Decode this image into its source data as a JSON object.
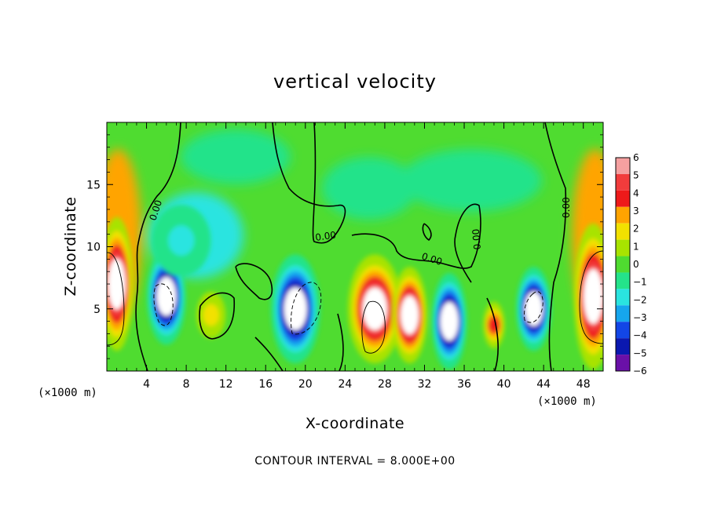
{
  "chart_data": {
    "type": "heatmap",
    "title": "vertical velocity",
    "xlabel": "X-coordinate",
    "ylabel": "Z-coordinate",
    "x_unit": "(×1000 m)",
    "x_unit_right": "(×1000 m)",
    "xlim": [
      0,
      50
    ],
    "ylim": [
      0,
      20
    ],
    "x_ticks": [
      4,
      8,
      12,
      16,
      20,
      24,
      28,
      32,
      36,
      40,
      44,
      48
    ],
    "y_ticks": [
      5,
      10,
      15
    ],
    "colorbar": {
      "levels": [
        6,
        5,
        4,
        3,
        2,
        1,
        0,
        -1,
        -2,
        -3,
        -4,
        -5,
        -6
      ],
      "labels": [
        "6",
        "5",
        "4",
        "3",
        "2",
        "1",
        "0",
        "−1",
        "−2",
        "−3",
        "−4",
        "−5",
        "−6"
      ],
      "colors": [
        "#f5a0a0",
        "#f23c3c",
        "#ee1a1a",
        "#ffa400",
        "#f2e100",
        "#a8e300",
        "#4fdc30",
        "#24e38a",
        "#2ae4e0",
        "#16a6ee",
        "#1246e6",
        "#0a18b0",
        "#6a10a8"
      ]
    },
    "cells": [
      {
        "x": 1.0,
        "z": 7.0,
        "w": 2.4,
        "h": 10.0,
        "v": 9
      },
      {
        "x": 6.0,
        "z": 6.0,
        "w": 3.0,
        "h": 7.0,
        "v": -9
      },
      {
        "x": 10.5,
        "z": 4.5,
        "w": 2.0,
        "h": 3.0,
        "v": 2
      },
      {
        "x": 19.0,
        "z": 5.0,
        "w": 4.0,
        "h": 8.0,
        "v": -9
      },
      {
        "x": 27.0,
        "z": 5.0,
        "w": 4.5,
        "h": 8.0,
        "v": 9
      },
      {
        "x": 30.5,
        "z": 4.5,
        "w": 2.6,
        "h": 7.0,
        "v": 8
      },
      {
        "x": 34.5,
        "z": 4.0,
        "w": 2.6,
        "h": 7.0,
        "v": -9
      },
      {
        "x": 39.0,
        "z": 3.7,
        "w": 1.2,
        "h": 3.0,
        "v": 4
      },
      {
        "x": 43.0,
        "z": 5.0,
        "w": 2.6,
        "h": 6.0,
        "v": -9
      },
      {
        "x": 49.0,
        "z": 6.0,
        "w": 3.0,
        "h": 11.0,
        "v": 9
      },
      {
        "x": 7.5,
        "z": 10.5,
        "w": 5.0,
        "h": 5.0,
        "v": -2
      }
    ],
    "contour_labels": [
      "0.00",
      "0.00",
      "0.00",
      "0.00",
      "0.00"
    ],
    "contour_interval_label": "CONTOUR INTERVAL =  8.000E+00"
  }
}
